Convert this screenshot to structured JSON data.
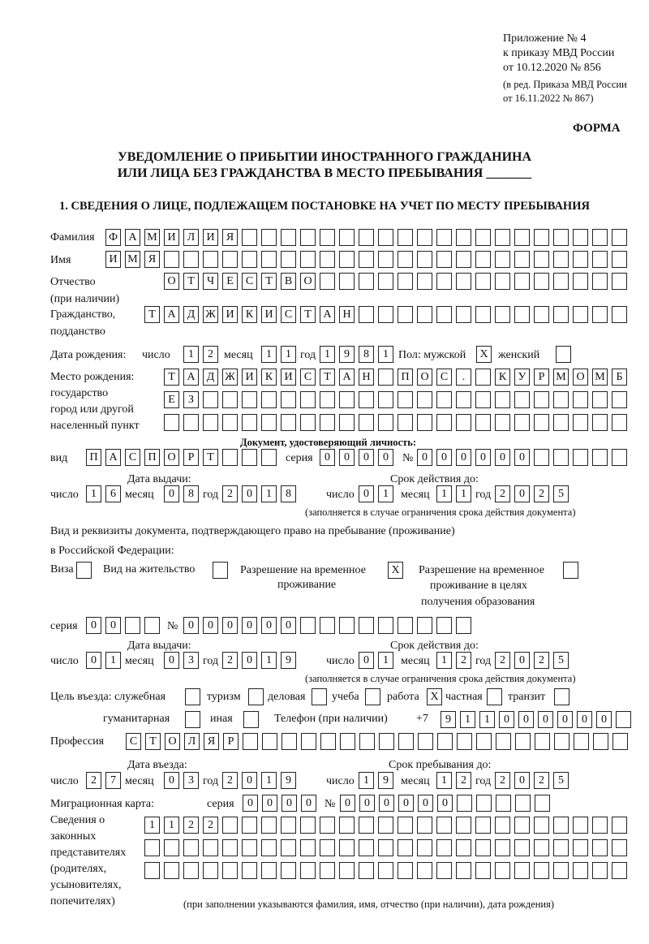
{
  "header": {
    "line1": "Приложение № 4",
    "line2": "к приказу МВД России",
    "line3": "от 10.12.2020 № 856",
    "line4": "(в ред. Приказа МВД России",
    "line5": "от 16.11.2022 № 867)",
    "forma": "ФОРМА"
  },
  "title": {
    "line1": "УВЕДОМЛЕНИЕ О ПРИБЫТИИ ИНОСТРАННОГО ГРАЖДАНИНА",
    "line2": "ИЛИ ЛИЦА БЕЗ ГРАЖДАНСТВА В МЕСТО ПРЕБЫВАНИЯ _______"
  },
  "section1": "1. СВЕДЕНИЯ О ЛИЦЕ, ПОДЛЕЖАЩЕМ ПОСТАНОВКЕ НА УЧЕТ ПО МЕСТУ ПРЕБЫВАНИЯ",
  "labels": {
    "surname": "Фамилия",
    "name": "Имя",
    "patronymic1": "Отчество",
    "patronymic2": "(при наличии)",
    "citizenship1": "Гражданство,",
    "citizenship2": "подданство",
    "birth_date": "Дата рождения:",
    "day": "число",
    "month": "месяц",
    "year": "год",
    "sex": "Пол: мужской",
    "female": "женский",
    "birthplace1": "Место рождения:",
    "birthplace2": "государство",
    "birthplace3": "город или другой",
    "birthplace4": "населенный пункт",
    "id_doc": "Документ, удостоверяющий личность:",
    "kind": "вид",
    "series": "серия",
    "number": "№",
    "issue_date": "Дата выдачи:",
    "valid_until": "Срок действия до:",
    "validity_note": "(заполняется в случае ограничения срока действия документа)",
    "right_doc1": "Вид и реквизиты документа, подтверждающего право на пребывание (проживание)",
    "right_doc2": "в Российской Федерации:",
    "visa": "Виза",
    "residence": "Вид на жительство",
    "rvp1": "Разрешение на временное",
    "rvp2": "проживание",
    "rvp_edu1": "Разрешение на временное",
    "rvp_edu2": "проживание в целях",
    "rvp_edu3": "получения образования",
    "purpose": "Цель въезда: служебная",
    "tourism": "туризм",
    "business": "деловая",
    "study": "учеба",
    "work": "работа",
    "private": "частная",
    "transit": "транзит",
    "humanitarian": "гуманитарная",
    "other": "иная",
    "phone": "Телефон (при наличии)",
    "phone_prefix": "+7",
    "profession": "Профессия",
    "entry_date": "Дата въезда:",
    "stay_until": "Срок пребывания до:",
    "migration_card": "Миграционная карта:",
    "reps1": "Сведения о",
    "reps2": "законных",
    "reps3": "представителях",
    "reps4": "(родителях,",
    "reps5": "усыновителях,",
    "reps6": "попечителях)",
    "reps_note": "(при заполнении указываются фамилия, имя, отчество (при наличии), дата рождения)"
  },
  "fields": {
    "surname": "ФАМИЛИЯ",
    "name": "ИМЯ",
    "patronymic": "ОТЧЕСТВО",
    "citizenship": "ТАДЖИКИСТАН",
    "birth_day": "12",
    "birth_month": "11",
    "birth_year": "1981",
    "sex_male": "X",
    "sex_female": "",
    "birthplace_1": "ТАДЖИКИСТАН ПОС. КУРМОМБ",
    "birthplace_2": "ЕЗ",
    "birthplace_3": "",
    "doc_kind": "ПАСПОРТ",
    "doc_series": "0000",
    "doc_number": "000000",
    "doc_issue_day": "16",
    "doc_issue_month": "08",
    "doc_issue_year": "2018",
    "doc_valid_day": "01",
    "doc_valid_month": "11",
    "doc_valid_year": "2025",
    "visa": "",
    "residence": "",
    "rvp": "X",
    "rvp_edu": "",
    "right_series": "00",
    "right_number": "000000",
    "right_issue_day": "01",
    "right_issue_month": "03",
    "right_issue_year": "2019",
    "right_valid_day": "01",
    "right_valid_month": "12",
    "right_valid_year": "2025",
    "p_service": "",
    "p_tourism": "",
    "p_business": "",
    "p_study": "",
    "p_work": "X",
    "p_private": "",
    "p_transit": "",
    "p_humanitarian": "",
    "p_other": "",
    "phone": "911000000",
    "profession": "СТОЛЯР",
    "entry_day": "27",
    "entry_month": "03",
    "entry_year": "2019",
    "stay_day": "19",
    "stay_month": "12",
    "stay_year": "2025",
    "mc_series": "0000",
    "mc_number": "000000",
    "reps_1": "1122",
    "reps_2": "",
    "reps_3": ""
  }
}
